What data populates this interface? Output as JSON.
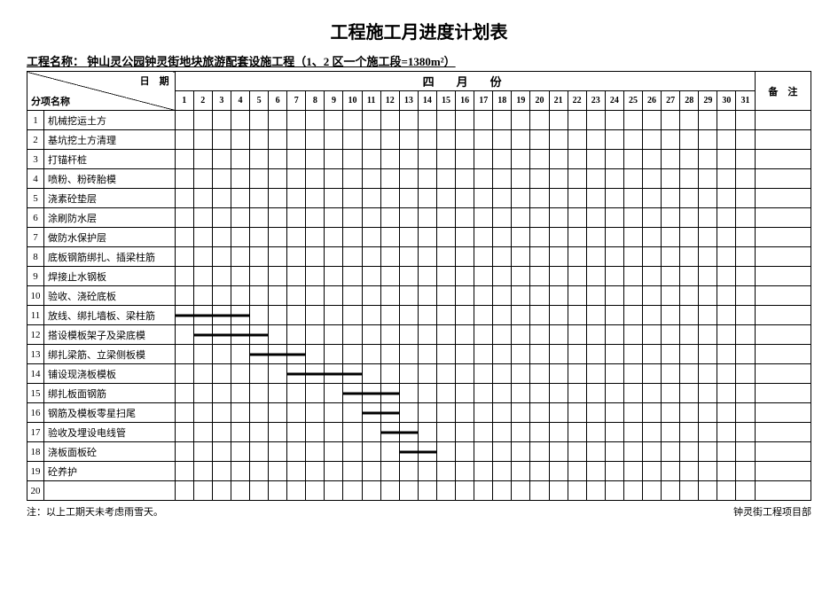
{
  "title": "工程施工月进度计划表",
  "project_label": "工程名称：",
  "project_name": "钟山灵公园钟灵街地块旅游配套设施工程（1、2 区一个施工段=1380m²）",
  "header": {
    "date_label": "日　期",
    "item_label": "分项名称",
    "month_label": "四　月　份",
    "remark_label": "备　注"
  },
  "days": 31,
  "rows": [
    {
      "idx": "1",
      "name": "机械挖运土方",
      "bar": null
    },
    {
      "idx": "2",
      "name": "基坑挖土方清理",
      "bar": null
    },
    {
      "idx": "3",
      "name": "打锚杆桩",
      "bar": null
    },
    {
      "idx": "4",
      "name": "喷粉、粉砖胎模",
      "bar": null
    },
    {
      "idx": "5",
      "name": "浇素砼垫层",
      "bar": null
    },
    {
      "idx": "6",
      "name": "涂刷防水层",
      "bar": null
    },
    {
      "idx": "7",
      "name": "做防水保护层",
      "bar": null
    },
    {
      "idx": "8",
      "name": "底板钢筋绑扎、插梁柱筋",
      "bar": null
    },
    {
      "idx": "9",
      "name": "焊接止水钢板",
      "bar": null
    },
    {
      "idx": "10",
      "name": "验收、浇砼底板",
      "bar": null
    },
    {
      "idx": "11",
      "name": "放线、绑扎墙板、梁柱筋",
      "bar": {
        "start": 1,
        "end": 4
      }
    },
    {
      "idx": "12",
      "name": "搭设模板架子及梁底模",
      "bar": {
        "start": 2,
        "end": 5
      }
    },
    {
      "idx": "13",
      "name": "绑扎梁筋、立梁侧板模",
      "bar": {
        "start": 5,
        "end": 7
      }
    },
    {
      "idx": "14",
      "name": "铺设现浇板模板",
      "bar": {
        "start": 7,
        "end": 10
      }
    },
    {
      "idx": "15",
      "name": "绑扎板面钢筋",
      "bar": {
        "start": 10,
        "end": 12
      }
    },
    {
      "idx": "16",
      "name": "钢筋及模板零星扫尾",
      "bar": {
        "start": 11,
        "end": 12
      }
    },
    {
      "idx": "17",
      "name": "验收及埋设电线管",
      "bar": {
        "start": 12,
        "end": 13
      }
    },
    {
      "idx": "18",
      "name": "浇板面板砼",
      "bar": {
        "start": 13,
        "end": 14
      }
    },
    {
      "idx": "19",
      "name": "砼养护",
      "bar": null
    },
    {
      "idx": "20",
      "name": "",
      "bar": null
    }
  ],
  "footer": {
    "left": "注：以上工期天未考虑雨雪天。",
    "right": "钟灵街工程项目部"
  },
  "colors": {
    "background": "#ffffff",
    "text": "#000000",
    "border": "#000000",
    "bar": "#000000"
  }
}
